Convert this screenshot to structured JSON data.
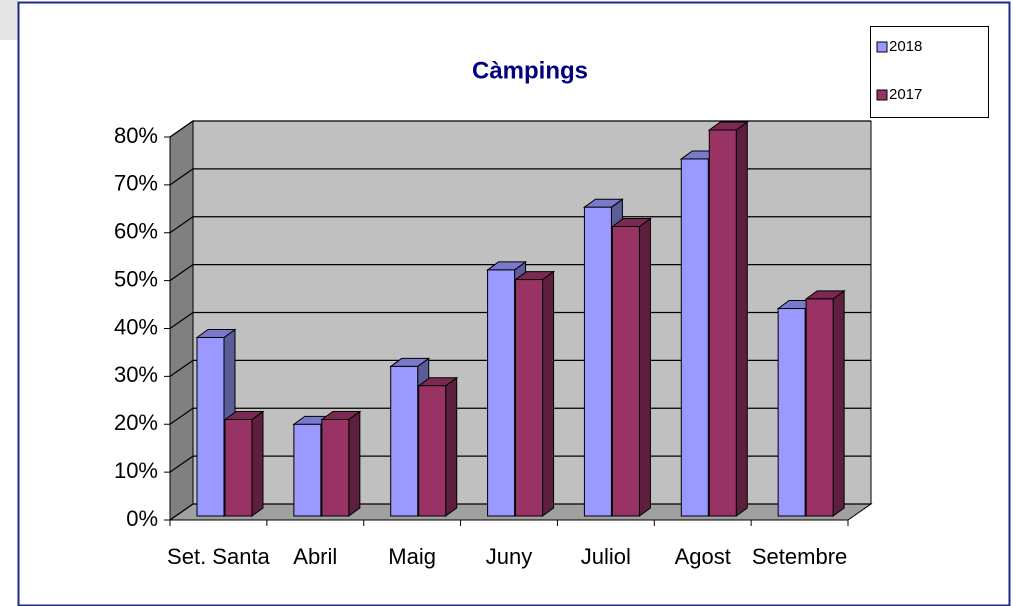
{
  "chart_data": {
    "type": "bar3d",
    "title": "Càmpings",
    "categories": [
      "Set. Santa",
      "Abril",
      "Maig",
      "Juny",
      "Juliol",
      "Agost",
      "Setembre"
    ],
    "series": [
      {
        "name": "2018",
        "color": "#9999ff",
        "values": [
          37,
          19,
          31,
          51,
          64,
          74,
          43
        ]
      },
      {
        "name": "2017",
        "color": "#993366",
        "values": [
          20,
          20,
          27,
          49,
          60,
          80,
          45
        ]
      }
    ],
    "ylim": [
      0,
      80
    ],
    "yticks": [
      {
        "value": 0,
        "label": "0%"
      },
      {
        "value": 10,
        "label": "10%"
      },
      {
        "value": 20,
        "label": "20%"
      },
      {
        "value": 30,
        "label": "30%"
      },
      {
        "value": 40,
        "label": "40%"
      },
      {
        "value": 50,
        "label": "50%"
      },
      {
        "value": 60,
        "label": "60%"
      },
      {
        "value": 70,
        "label": "70%"
      },
      {
        "value": 80,
        "label": "80%"
      }
    ],
    "grid": true,
    "legend": "top-right"
  }
}
